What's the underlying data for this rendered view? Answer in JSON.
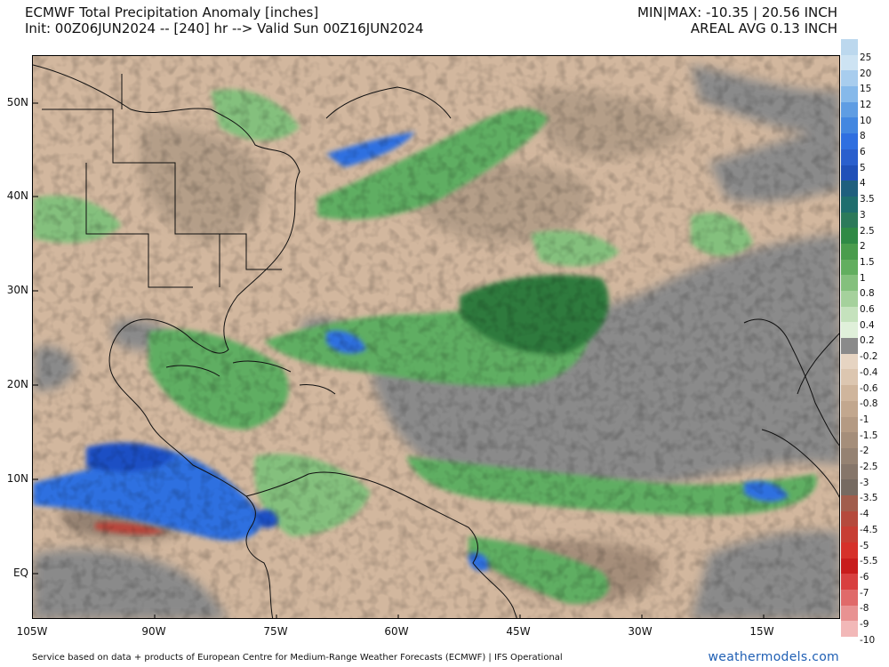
{
  "header": {
    "title": "ECMWF Total Precipitation Anomaly [inches]",
    "init_line": "Init: 00Z06JUN2024 -- [240] hr --> Valid Sun 00Z16JUN2024",
    "minmax": "MIN|MAX: -10.35 | 20.56 INCH",
    "areal_avg": "AREAL AVG 0.13 INCH"
  },
  "map": {
    "lat_labels": [
      "50N",
      "40N",
      "30N",
      "20N",
      "10N",
      "EQ"
    ],
    "lon_labels": [
      "105W",
      "90W",
      "75W",
      "60W",
      "45W",
      "30W",
      "15W"
    ],
    "colors": {
      "ocean_neutral": "#8a8a8a",
      "dry_light": "#d2b79e",
      "dry_medium": "#b49e88",
      "dry_strong": "#8f7b69",
      "wet_light": "#b8dcb4",
      "wet_medium": "#5fae62",
      "wet_strong": "#2e7a3c",
      "very_wet": "#2f6fe0",
      "very_wet_dark": "#1e4fc4",
      "extreme_dry": "#b8453a",
      "border": "#111111"
    }
  },
  "colorbar": {
    "levels": [
      "25",
      "20",
      "15",
      "12",
      "10",
      "8",
      "6",
      "5",
      "4",
      "3.5",
      "3",
      "2.5",
      "2",
      "1.5",
      "1",
      "0.8",
      "0.6",
      "0.4",
      "0.2",
      "-0.2",
      "-0.4",
      "-0.6",
      "-0.8",
      "-1",
      "-1.5",
      "-2",
      "-2.5",
      "-3",
      "-3.5",
      "-4",
      "-4.5",
      "-5",
      "-5.5",
      "-6",
      "-7",
      "-8",
      "-9",
      "-10"
    ],
    "colors": [
      "#bcd8ee",
      "#cde3f3",
      "#a8cdee",
      "#86b9ea",
      "#5f9de3",
      "#4387e0",
      "#2f6fe0",
      "#2a5fcd",
      "#2050b8",
      "#1f5f7e",
      "#1f6e6e",
      "#2c7a5a",
      "#2f8a45",
      "#4a9d4d",
      "#62ae5f",
      "#84c07d",
      "#a5d19c",
      "#c5e2bd",
      "#e0f0da",
      "#8a8a8a",
      "#e6d4c2",
      "#dcc6b0",
      "#cfb59c",
      "#c2a78e",
      "#b49a83",
      "#a58e7a",
      "#958272",
      "#86766a",
      "#766a61",
      "#a15d4c",
      "#b54a3c",
      "#c73e33",
      "#d6312a",
      "#c81c1c",
      "#d84040",
      "#e06a6a",
      "#e89292",
      "#f2b8b8"
    ]
  },
  "footer": {
    "credit": "Service based on data + products of European Centre for Medium-Range Weather Forecasts (ECMWF) | IFS Operational",
    "brand": "weathermodels.com"
  }
}
